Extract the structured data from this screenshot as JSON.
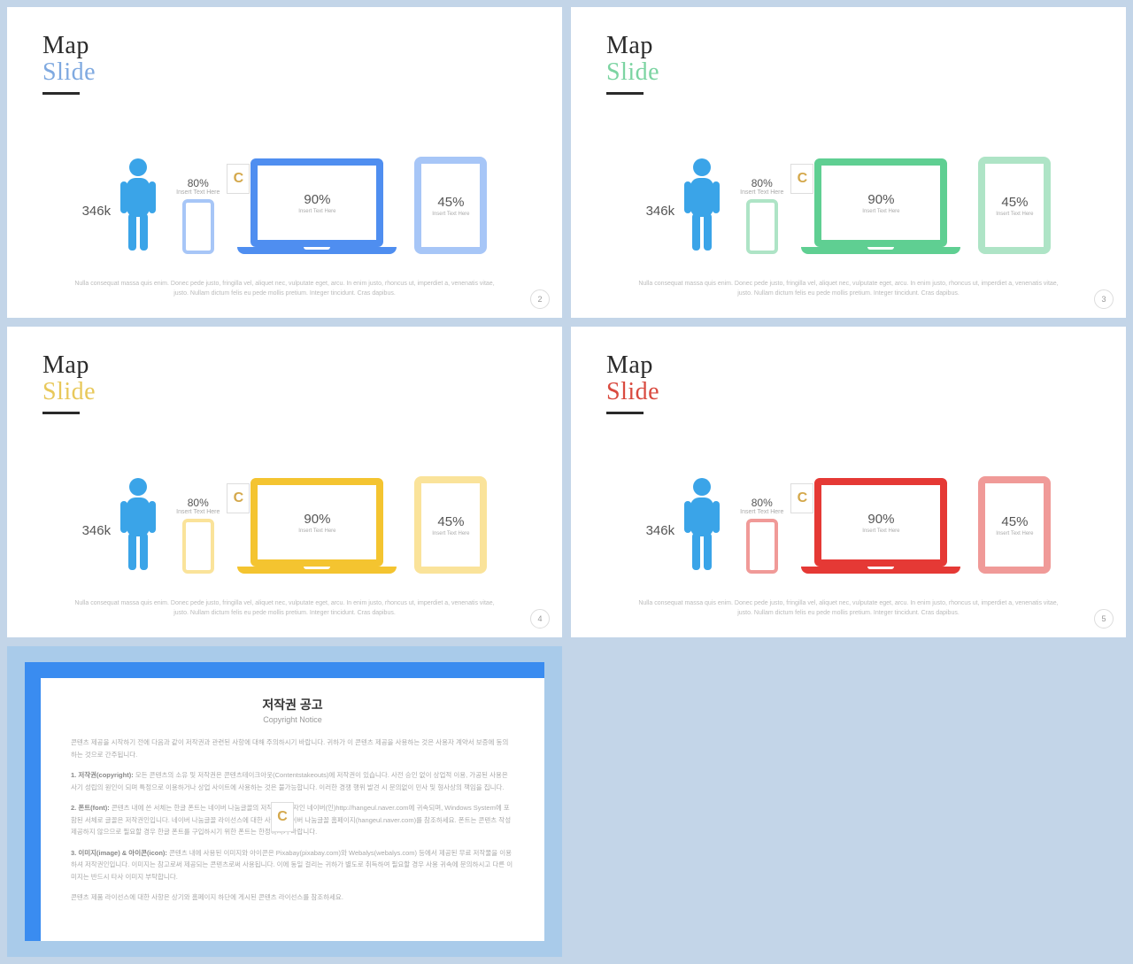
{
  "common": {
    "title1": "Map",
    "title2": "Slide",
    "person_value": "346k",
    "phone_pct": "80%",
    "phone_sub": "Insert Text Here",
    "laptop_pct": "90%",
    "laptop_sub": "Insert Text Here",
    "tablet_pct": "45%",
    "tablet_sub": "Insert Text Here",
    "footer": "Nulla consequat massa quis enim. Donec pede justo, fringilla vel, aliquet nec, vulputate eget, arcu. In enim justo, rhoncus ut, imperdiet a, venenatis vitae, justo. Nullam dictum felis eu pede mollis pretium. Integer tincidunt. Cras dapibus.",
    "watermark": "C",
    "person_color": "#3aa4e8"
  },
  "slides": [
    {
      "accent": "#4f8ef0",
      "accent_light": "#a7c6f7",
      "title_color": "#7fa9e0",
      "page": "2"
    },
    {
      "accent": "#5fcf92",
      "accent_light": "#aee4c6",
      "title_color": "#7cd4a2",
      "page": "3"
    },
    {
      "accent": "#f4c430",
      "accent_light": "#fae39a",
      "title_color": "#e8c85a",
      "page": "4"
    },
    {
      "accent": "#e53935",
      "accent_light": "#f09a98",
      "title_color": "#d94a3f",
      "page": "5"
    }
  ],
  "copyright": {
    "title": "저작권 공고",
    "subtitle": "Copyright Notice",
    "p1": "콘텐츠 제공을 시작하기 전에 다음과 같이 저작권과 관련된 사항에 대해 주의하시기 바랍니다. 귀하가 이 콘텐츠 제공을 사용하는 것은 사용자 계약서 보증에 동의하는 것으로 간주됩니다.",
    "p2_label": "1. 저작권(copyright):",
    "p2": " 모든 콘텐츠의 소유 및 저작권은 콘텐츠테이크아웃(Contentstakeouts)에 저작권이 있습니다. 사전 승인 없이 상업적 이용, 가공된 사용은 사기 성립의 원인이 되며 특정으로 이용하거나 상업 사이트에 사용하는 것은 불가능합니다. 이러한 경쟁 행위 발견 시 문의없이 민사 및 형사상의 책임을 집니다.",
    "p3_label": "2. 폰트(font):",
    "p3": " 콘텐츠 내에 쓴 서체는 한글 폰트는 네이버 나눔글꼴의 저작권 소유자인 네이버(인)http://hangeul.naver.com에 귀속되며, Windows System에 포함된 서체로 글꼴은 저작권인입니다. 네이버 나눔글꼴 라이선스에 대한 사항은 네이버 나눔글꼴 홈페이지(hangeul.naver.com)를 참조하세요. 폰트는 콘텐츠 작성 제공하지 않으므로 필요할 경우 한글 폰트를 구입하시기 위한 폰트는 한정하시기 바랍니다.",
    "p4_label": "3. 이미지(image) & 아이콘(icon):",
    "p4": " 콘텐츠 내에 사용된 이미지와 아이콘은 Pixabay(pixabay.com)와 Webalys(webalys.com) 등에서 제공된 무료 저작물을 이용하셔 저작권인입니다. 이미지는 참고로써 제공되는 콘텐츠로써 사용됩니다. 이에 동일 걸리는 귀하가 별도로 취득하여 필요할 경우 사용 귀속에 문의하시고 다른 이미지는 반드시 타사 이미지 부탁합니다.",
    "p5": "콘텐츠 제품 라이선스에 대한 사항은 상기와 홈페이지 하단에 게시된 콘텐츠 라이선스를 참조하세요."
  }
}
